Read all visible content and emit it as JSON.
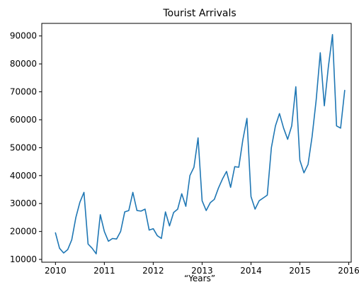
{
  "chart_data": {
    "type": "line",
    "title": "Tourist Arrivals",
    "xlabel": "“Years”",
    "ylabel": "",
    "xlim": [
      2009.72,
      2016.05
    ],
    "ylim": [
      9000,
      94500
    ],
    "x_ticks": [
      2010,
      2011,
      2012,
      2013,
      2014,
      2015,
      2016
    ],
    "x_tick_labels": [
      "2010",
      "2011",
      "2012",
      "2013",
      "2014",
      "2015",
      "2016"
    ],
    "y_ticks": [
      10000,
      20000,
      30000,
      40000,
      50000,
      60000,
      70000,
      80000,
      90000
    ],
    "y_tick_labels": [
      "10000",
      "20000",
      "30000",
      "40000",
      "50000",
      "60000",
      "70000",
      "80000",
      "90000"
    ],
    "grid": false,
    "legend": "none",
    "series_color": "#1f77b4",
    "series": [
      {
        "x": [
          2010.0,
          2010.083,
          2010.167,
          2010.25,
          2010.333,
          2010.417,
          2010.5,
          2010.583,
          2010.667,
          2010.75,
          2010.833,
          2010.917,
          2011.0,
          2011.083,
          2011.167,
          2011.25,
          2011.333,
          2011.417,
          2011.5,
          2011.583,
          2011.667,
          2011.75,
          2011.833,
          2011.917,
          2012.0,
          2012.083,
          2012.167,
          2012.25,
          2012.333,
          2012.417,
          2012.5,
          2012.583,
          2012.667,
          2012.75,
          2012.833,
          2012.917,
          2013.0,
          2013.083,
          2013.167,
          2013.25,
          2013.333,
          2013.417,
          2013.5,
          2013.583,
          2013.667,
          2013.75,
          2013.833,
          2013.917,
          2014.0,
          2014.083,
          2014.167,
          2014.25,
          2014.333,
          2014.417,
          2014.5,
          2014.583,
          2014.667,
          2014.75,
          2014.833,
          2014.917,
          2015.0,
          2015.083,
          2015.167,
          2015.25,
          2015.333,
          2015.417,
          2015.5,
          2015.583,
          2015.667,
          2015.75,
          2015.833,
          2015.917
        ],
        "values": [
          19500,
          14000,
          12300,
          13500,
          17000,
          25000,
          30500,
          34000,
          15500,
          14000,
          12000,
          26000,
          20000,
          16500,
          17500,
          17300,
          20000,
          27000,
          27500,
          34000,
          27500,
          27300,
          28000,
          20500,
          21000,
          18500,
          17500,
          27000,
          22000,
          26800,
          28000,
          33500,
          29000,
          40000,
          43000,
          53500,
          31000,
          27500,
          30300,
          31500,
          35500,
          38800,
          41500,
          35800,
          43200,
          43000,
          52800,
          60500,
          32500,
          28000,
          31000,
          32000,
          33000,
          50000,
          57800,
          62200,
          57000,
          53000,
          57800,
          71800,
          45500,
          41000,
          44000,
          54000,
          67000,
          84000,
          65000,
          79000,
          90500,
          57800,
          57000,
          70500
        ]
      }
    ]
  }
}
